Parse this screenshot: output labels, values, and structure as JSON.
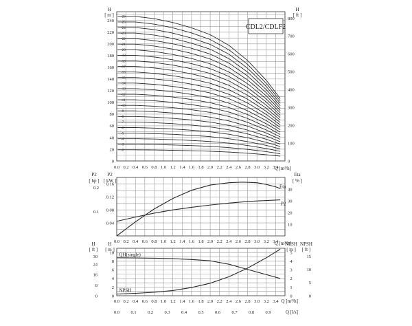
{
  "chart_data": [
    {
      "type": "line",
      "title": "CDL2/CDLF2",
      "xlabel": "Q [m³/h]",
      "ylabel_left": "H [m]",
      "ylabel_right": "H [ft]",
      "xlim": [
        0,
        3.6
      ],
      "ylim": [
        0,
        255
      ],
      "ylim_right": [
        0,
        836
      ],
      "x_ticks": [
        "0.0",
        "0.2",
        "0.4",
        "0.6",
        "0.8",
        "1.0",
        "1.2",
        "1.4",
        "1.6",
        "1.8",
        "2.0",
        "2.2",
        "2.4",
        "2.6",
        "2.8",
        "3.0",
        "3.2",
        "3.4"
      ],
      "y_ticks_left": [
        "0",
        "20",
        "40",
        "60",
        "80",
        "100",
        "120",
        "140",
        "160",
        "180",
        "200",
        "220",
        "240"
      ],
      "y_ticks_right": [
        "0",
        "100",
        "200",
        "300",
        "400",
        "500",
        "600",
        "700",
        "800"
      ],
      "grid": true,
      "stages": [
        "-2",
        "-3",
        "-4",
        "-5",
        "-6",
        "-7",
        "-8",
        "-9",
        "-10",
        "-11",
        "-12",
        "-13",
        "-14",
        "-15",
        "-16",
        "-17",
        "-18",
        "-19",
        "-20",
        "-21",
        "-22",
        "-23",
        "-24",
        "-25",
        "-26"
      ],
      "stage_numbers": [
        2,
        3,
        4,
        5,
        6,
        7,
        8,
        9,
        10,
        11,
        12,
        13,
        14,
        15,
        16,
        17,
        18,
        19,
        20,
        21,
        22,
        23,
        24,
        25,
        26
      ],
      "head_per_stage_curve": {
        "x": [
          0,
          0.4,
          0.8,
          1.2,
          1.6,
          2.0,
          2.4,
          2.8,
          3.2,
          3.5
        ],
        "y": [
          9.5,
          9.5,
          9.35,
          9.1,
          8.75,
          8.3,
          7.6,
          6.6,
          5.3,
          4.1
        ]
      }
    },
    {
      "type": "line",
      "xlabel": "Q [m³/h]",
      "ylabel_left_outer": "P2 [hp]",
      "ylabel_left_inner": "P2 [kW]",
      "ylabel_right": "Eta [%]",
      "xlim": [
        0,
        3.6
      ],
      "ylim": [
        0,
        0.18
      ],
      "ylim_right": [
        0,
        50
      ],
      "x_ticks": [
        "0.0",
        "0.2",
        "0.4",
        "0.6",
        "0.8",
        "1.0",
        "1.2",
        "1.4",
        "1.6",
        "1.8",
        "2.0",
        "2.2",
        "2.4",
        "2.6",
        "2.8",
        "3.0",
        "3.2",
        "3.4"
      ],
      "y_ticks_hp": [
        "0.2",
        "0.1"
      ],
      "y_ticks_kw": [
        "0.16",
        "0.12",
        "0.08",
        "0.04"
      ],
      "y_ticks_eta": [
        "40",
        "30",
        "20",
        "10"
      ],
      "grid": true,
      "series": [
        {
          "name": "Eta",
          "axis": "right",
          "x": [
            0,
            0.2,
            0.4,
            0.8,
            1.2,
            1.6,
            2.0,
            2.4,
            2.7,
            3.0,
            3.2,
            3.4,
            3.5
          ],
          "y": [
            0,
            6,
            12,
            23,
            32,
            39,
            43.5,
            45.5,
            46,
            45.5,
            44,
            42,
            40.5
          ]
        },
        {
          "name": "P2",
          "axis": "left",
          "x": [
            0,
            0.4,
            0.8,
            1.2,
            1.6,
            2.0,
            2.4,
            2.8,
            3.2,
            3.5
          ],
          "y": [
            0.045,
            0.058,
            0.07,
            0.08,
            0.088,
            0.095,
            0.101,
            0.106,
            0.109,
            0.111
          ]
        }
      ]
    },
    {
      "type": "line",
      "xlabel": "Q [m³/h]",
      "xlabel2": "Q [l/s]",
      "ylabel_left_outer": "H [ft]",
      "ylabel_left_inner": "H [m]",
      "ylabel_right_inner": "NPSH [m]",
      "ylabel_right_outer": "NPSH [ft]",
      "xlim": [
        0,
        3.6
      ],
      "ylim": [
        0,
        11
      ],
      "ylim_right": [
        0,
        5.5
      ],
      "x_ticks": [
        "0.0",
        "0.2",
        "0.4",
        "0.6",
        "0.8",
        "1.0",
        "1.2",
        "1.4",
        "1.6",
        "1.8",
        "2.0",
        "2.2",
        "2.4",
        "2.6",
        "2.8",
        "3.0",
        "3.2",
        "3.4"
      ],
      "x2_ticks": [
        "0.0",
        "0.1",
        "0.2",
        "0.3",
        "0.4",
        "0.5",
        "0.6",
        "0.7",
        "0.8",
        "0.9"
      ],
      "x2_values": [
        0,
        0.1,
        0.2,
        0.3,
        0.4,
        0.5,
        0.6,
        0.7,
        0.8,
        0.9
      ],
      "y_ticks_ft": [
        "30",
        "24",
        "16",
        "8",
        "0"
      ],
      "y_ticks_m": [
        "10",
        "8",
        "6",
        "4",
        "2",
        "0"
      ],
      "y_ticks_npsh_m": [
        "5",
        "4",
        "3",
        "2",
        "1",
        "0"
      ],
      "y_ticks_npsh_ft": [
        "15",
        "10",
        "5",
        "0"
      ],
      "grid": true,
      "series": [
        {
          "name": "QH(single)",
          "axis": "left",
          "x": [
            0,
            0.4,
            0.8,
            1.2,
            1.6,
            2.0,
            2.4,
            2.8,
            3.2,
            3.5
          ],
          "y": [
            8.8,
            8.75,
            8.7,
            8.6,
            8.4,
            8.1,
            7.3,
            6.1,
            4.9,
            4.0
          ]
        },
        {
          "name": "NPSH",
          "axis": "right",
          "x": [
            0,
            0.4,
            0.8,
            1.2,
            1.6,
            2.0,
            2.4,
            2.8,
            3.2,
            3.5
          ],
          "y": [
            0.2,
            0.28,
            0.4,
            0.6,
            0.95,
            1.45,
            2.2,
            3.2,
            4.4,
            5.4
          ]
        }
      ]
    }
  ]
}
